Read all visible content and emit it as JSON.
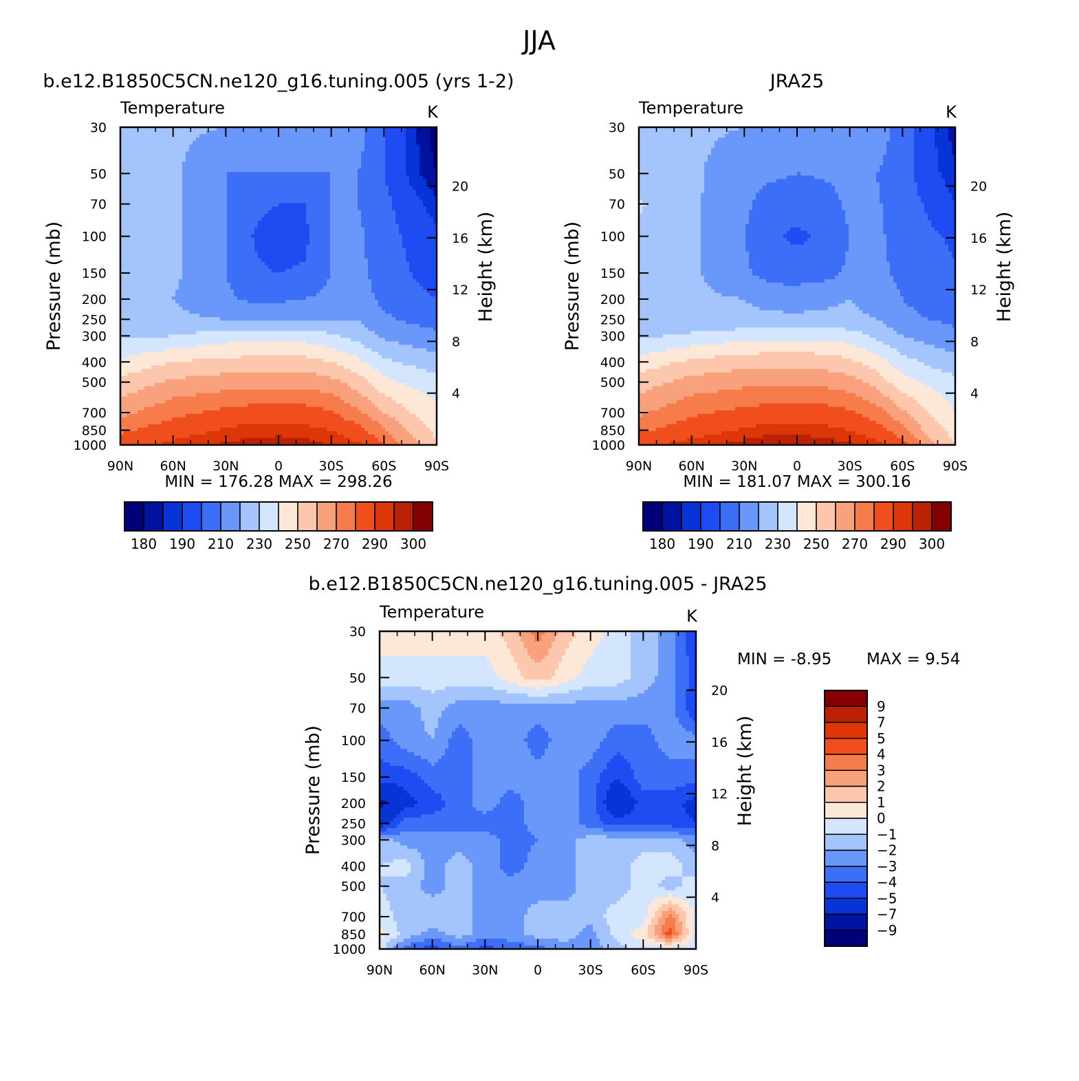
{
  "figure": {
    "title": "JJA"
  },
  "palettes": {
    "abs": [
      "#00007a",
      "#0013a0",
      "#0833d6",
      "#1e4cf2",
      "#3d6ef8",
      "#6a98fa",
      "#a3c4fc",
      "#d4e6fd",
      "#fde7d6",
      "#fcc7ad",
      "#f9a07c",
      "#f67c4c",
      "#f14e1e",
      "#dd3609",
      "#bb2205",
      "#850000"
    ],
    "diff": [
      "#00007a",
      "#0013a0",
      "#0833d6",
      "#1e4cf2",
      "#3d6ef8",
      "#6a98fa",
      "#a3c4fc",
      "#d4e6fd",
      "#fde7d6",
      "#fcc7ad",
      "#f9a07c",
      "#f67c4c",
      "#f14e1e",
      "#dd3609",
      "#bb2205",
      "#850000"
    ]
  },
  "chart_data": [
    {
      "type": "heatmap",
      "title": "b.e12.B1850C5CN.ne120_g16.tuning.005 (yrs 1-2)",
      "subtitle": "Temperature",
      "units": "K",
      "ylabel": "Pressure (mb)",
      "y2label": "Height (km)",
      "x": {
        "ticks": [
          90,
          60,
          30,
          0,
          -30,
          -60,
          -90
        ],
        "labels": [
          "90N",
          "60N",
          "30N",
          "0",
          "30S",
          "60S",
          "90S"
        ],
        "range": [
          90,
          -90
        ]
      },
      "y": {
        "ticks": [
          30,
          50,
          70,
          100,
          150,
          200,
          250,
          300,
          400,
          500,
          700,
          850,
          1000
        ],
        "range": [
          30,
          1000
        ],
        "scale": "log"
      },
      "y2": {
        "ticks": [
          20,
          16,
          12,
          8,
          4
        ]
      },
      "stats": "MIN = 176.28 MAX = 298.26",
      "colorbar": {
        "levels": [
          175,
          180,
          185,
          190,
          200,
          210,
          220,
          230,
          240,
          250,
          260,
          270,
          280,
          290,
          295,
          300
        ],
        "labels": [
          "180",
          "190",
          "210",
          "230",
          "250",
          "270",
          "290",
          "300"
        ]
      },
      "grid": {
        "lat": [
          90,
          60,
          30,
          15,
          0,
          -15,
          -30,
          -45,
          -60,
          -75,
          -90
        ],
        "p": [
          30,
          50,
          70,
          100,
          150,
          200,
          250,
          300,
          400,
          500,
          700,
          850,
          1000
        ],
        "values": [
          [
            230,
            222,
            220,
            220,
            220,
            220,
            220,
            215,
            200,
            188,
            176
          ],
          [
            228,
            222,
            210,
            210,
            210,
            210,
            210,
            210,
            200,
            188,
            180
          ],
          [
            228,
            222,
            210,
            202,
            200,
            200,
            210,
            210,
            203,
            194,
            186
          ],
          [
            228,
            222,
            210,
            200,
            196,
            198,
            210,
            212,
            204,
            198,
            192
          ],
          [
            228,
            222,
            210,
            201,
            200,
            201,
            210,
            213,
            205,
            200,
            196
          ],
          [
            225,
            220,
            212,
            208,
            208,
            210,
            213,
            216,
            207,
            203,
            200
          ],
          [
            223,
            222,
            220,
            220,
            220,
            220,
            220,
            220,
            212,
            208,
            206
          ],
          [
            228,
            230,
            235,
            235,
            235,
            235,
            232,
            226,
            218,
            215,
            212
          ],
          [
            242,
            250,
            253,
            254,
            254,
            254,
            250,
            243,
            232,
            228,
            224
          ],
          [
            253,
            262,
            265,
            266,
            266,
            266,
            263,
            255,
            243,
            238,
            234
          ],
          [
            267,
            277,
            283,
            285,
            285,
            285,
            281,
            272,
            260,
            250,
            244
          ],
          [
            278,
            286,
            291,
            293,
            293,
            292,
            290,
            284,
            272,
            257,
            248
          ],
          [
            287,
            292,
            296,
            297,
            298,
            297,
            295,
            292,
            280,
            265,
            250
          ]
        ]
      }
    },
    {
      "type": "heatmap",
      "title": "JRA25",
      "subtitle": "Temperature",
      "units": "K",
      "ylabel": "Pressure (mb)",
      "y2label": "Height (km)",
      "x": {
        "ticks": [
          90,
          60,
          30,
          0,
          -30,
          -60,
          -90
        ],
        "labels": [
          "90N",
          "60N",
          "30N",
          "0",
          "30S",
          "60S",
          "90S"
        ],
        "range": [
          90,
          -90
        ]
      },
      "y": {
        "ticks": [
          30,
          50,
          70,
          100,
          150,
          200,
          250,
          300,
          400,
          500,
          700,
          850,
          1000
        ],
        "range": [
          30,
          1000
        ],
        "scale": "log"
      },
      "y2": {
        "ticks": [
          20,
          16,
          12,
          8,
          4
        ]
      },
      "stats": "MIN = 181.07 MAX = 300.16",
      "colorbar": {
        "levels": [
          175,
          180,
          185,
          190,
          200,
          210,
          220,
          230,
          240,
          250,
          260,
          270,
          280,
          290,
          295,
          300
        ],
        "labels": [
          "180",
          "190",
          "210",
          "230",
          "250",
          "270",
          "290",
          "300"
        ]
      },
      "grid": {
        "lat": [
          90,
          60,
          30,
          15,
          0,
          -15,
          -30,
          -45,
          -60,
          -75,
          -90
        ],
        "p": [
          30,
          50,
          70,
          100,
          150,
          200,
          250,
          300,
          400,
          500,
          700,
          850,
          1000
        ],
        "values": [
          [
            226,
            222,
            220,
            220,
            218,
            220,
            220,
            216,
            205,
            192,
            182
          ],
          [
            225,
            222,
            213,
            212,
            210,
            211,
            212,
            210,
            205,
            193,
            186
          ],
          [
            231,
            222,
            212,
            205,
            204,
            206,
            212,
            211,
            206,
            198,
            190
          ],
          [
            228,
            222,
            210,
            202,
            198,
            202,
            210,
            212,
            206,
            202,
            198
          ],
          [
            227,
            222,
            212,
            205,
            205,
            206,
            212,
            213,
            207,
            204,
            201
          ],
          [
            226,
            222,
            220,
            217,
            216,
            218,
            220,
            217,
            210,
            206,
            204
          ],
          [
            226,
            222,
            222,
            222,
            222,
            222,
            222,
            220,
            213,
            210,
            208
          ],
          [
            228,
            232,
            236,
            237,
            237,
            237,
            235,
            228,
            220,
            216,
            212
          ],
          [
            244,
            252,
            256,
            257,
            257,
            256,
            252,
            245,
            234,
            228,
            224
          ],
          [
            255,
            264,
            267,
            268,
            268,
            267,
            264,
            256,
            244,
            238,
            233
          ],
          [
            268,
            278,
            283,
            285,
            285,
            285,
            282,
            275,
            262,
            250,
            240
          ],
          [
            278,
            286,
            291,
            293,
            293,
            292,
            290,
            285,
            274,
            256,
            246
          ],
          [
            288,
            293,
            297,
            299,
            299,
            298,
            296,
            293,
            284,
            264,
            250
          ]
        ]
      }
    },
    {
      "type": "heatmap",
      "title": "b.e12.B1850C5CN.ne120_g16.tuning.005 - JRA25",
      "subtitle": "Temperature",
      "units": "K",
      "ylabel": "Pressure (mb)",
      "y2label": "Height (km)",
      "x": {
        "ticks": [
          90,
          60,
          30,
          0,
          -30,
          -60,
          -90
        ],
        "labels": [
          "90N",
          "60N",
          "30N",
          "0",
          "30S",
          "60S",
          "90S"
        ],
        "range": [
          90,
          -90
        ]
      },
      "y": {
        "ticks": [
          30,
          50,
          70,
          100,
          150,
          200,
          250,
          300,
          400,
          500,
          700,
          850,
          1000
        ],
        "range": [
          30,
          1000
        ],
        "scale": "log"
      },
      "y2": {
        "ticks": [
          20,
          16,
          12,
          8,
          4
        ]
      },
      "stats_min": "MIN = -8.95",
      "stats_max": "MAX = 9.54",
      "colorbar": {
        "levels": [
          -10,
          -9,
          -7,
          -5,
          -4,
          -3,
          -2,
          -1,
          0,
          1,
          2,
          3,
          4,
          5,
          7,
          9,
          10
        ],
        "labels": [
          "9",
          "7",
          "5",
          "4",
          "3",
          "2",
          "1",
          "0",
          "-1",
          "-2",
          "-3",
          "-4",
          "-5",
          "-7",
          "-9"
        ]
      },
      "grid": {
        "lat": [
          90,
          75,
          60,
          45,
          30,
          15,
          0,
          -15,
          -30,
          -45,
          -60,
          -75,
          -90
        ],
        "p": [
          30,
          50,
          70,
          100,
          150,
          200,
          250,
          300,
          400,
          500,
          700,
          850,
          1000
        ],
        "values": [
          [
            0.5,
            0.5,
            0.5,
            0.5,
            0.5,
            1.5,
            3.5,
            1.5,
            0.5,
            -0.5,
            -1.5,
            -2.5,
            -5
          ],
          [
            -0.5,
            -0.5,
            -0.5,
            -0.5,
            -0.5,
            0.5,
            1.5,
            0.5,
            -0.5,
            -0.5,
            -1.5,
            -2.5,
            -4.5
          ],
          [
            -2.5,
            -2.5,
            -1.5,
            -2.5,
            -2.5,
            -2.5,
            -2.5,
            -2.5,
            -2.5,
            -2.5,
            -2.5,
            -2.5,
            -5
          ],
          [
            -3.5,
            -2.5,
            -2.0,
            -3.5,
            -2.5,
            -2.5,
            -3.5,
            -2.5,
            -2.5,
            -3.5,
            -3.5,
            -2.5,
            -2.5
          ],
          [
            -4.5,
            -4.5,
            -3.5,
            -3.5,
            -2.5,
            -2.5,
            -2.5,
            -2.5,
            -3.5,
            -5.0,
            -3.5,
            -3.5,
            -3.5
          ],
          [
            -7.5,
            -5.5,
            -4.5,
            -3.5,
            -2.5,
            -3.5,
            -2.5,
            -2.5,
            -3.5,
            -6.5,
            -4.5,
            -4.5,
            -5.5
          ],
          [
            -6,
            -3.5,
            -3.5,
            -3.5,
            -3.5,
            -3.5,
            -2.5,
            -2.5,
            -3.5,
            -4.5,
            -4.5,
            -4.5,
            -5
          ],
          [
            -1.5,
            -2.5,
            -2.5,
            -2.5,
            -2.5,
            -3.5,
            -3.0,
            -2.5,
            -1.5,
            -1.5,
            -1.5,
            -1.5,
            -2.5
          ],
          [
            -1.0,
            -0.5,
            -2.5,
            -1.5,
            -2.5,
            -3.5,
            -2.5,
            -2.5,
            -1.5,
            -1.5,
            -0.5,
            -0.5,
            -1.5
          ],
          [
            -1.0,
            -1.5,
            -2.5,
            -1.5,
            -2.5,
            -2.5,
            -2.5,
            -2.5,
            -1.5,
            -1.5,
            -0.5,
            -1.5,
            -0.5
          ],
          [
            -0.5,
            -1.5,
            -1.0,
            -1.5,
            -2.5,
            -2.5,
            -1.5,
            -1.5,
            -1.5,
            -0.5,
            -0.5,
            3.5,
            -0.5
          ],
          [
            0.5,
            -1.5,
            -2.5,
            -1.5,
            -2.5,
            -2.5,
            -1.5,
            -1.5,
            -2.5,
            -0.5,
            0.5,
            4.5,
            -0.5
          ],
          [
            -0.5,
            -3.5,
            -4.5,
            -3.5,
            -4.5,
            -3.5,
            -3.5,
            -2.5,
            -2.5,
            -1.5,
            -0.5,
            -0.5,
            -0.5
          ]
        ]
      }
    }
  ]
}
